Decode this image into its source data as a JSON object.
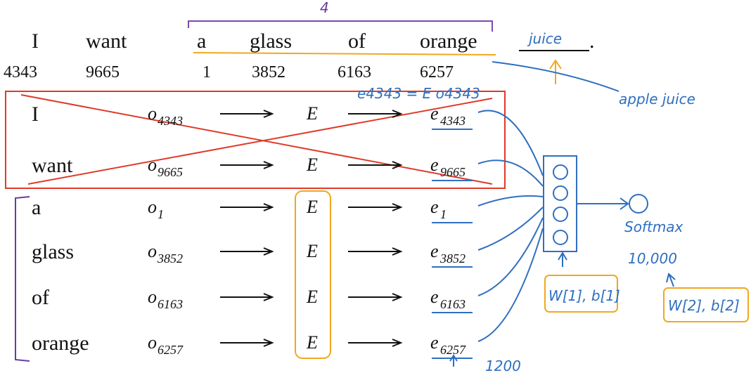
{
  "sentence": {
    "words": [
      "I",
      "want",
      "a",
      "glass",
      "of",
      "orange"
    ],
    "target": "juice",
    "end": ".",
    "indices": [
      "4343",
      "9665",
      "1",
      "3852",
      "6163",
      "6257"
    ]
  },
  "rows": [
    {
      "word": "I",
      "one_hot": "o",
      "one_hot_index": "4343",
      "matrix": "E",
      "embedding": "e",
      "embedding_index": "4343"
    },
    {
      "word": "want",
      "one_hot": "o",
      "one_hot_index": "9665",
      "matrix": "E",
      "embedding": "e",
      "embedding_index": "9665"
    },
    {
      "word": "a",
      "one_hot": "o",
      "one_hot_index": "1",
      "matrix": "E",
      "embedding": "e",
      "embedding_index": "1"
    },
    {
      "word": "glass",
      "one_hot": "o",
      "one_hot_index": "3852",
      "matrix": "E",
      "embedding": "e",
      "embedding_index": "3852"
    },
    {
      "word": "of",
      "one_hot": "o",
      "one_hot_index": "6163",
      "matrix": "E",
      "embedding": "e",
      "embedding_index": "6163"
    },
    {
      "word": "orange",
      "one_hot": "o",
      "one_hot_index": "6257",
      "matrix": "E",
      "embedding": "e",
      "embedding_index": "6257"
    }
  ],
  "annotations": {
    "context_size": "4",
    "alternative": "apple juice",
    "equation": "e4343 = E o4343",
    "softmax": "Softmax",
    "vocab_size": "10,000",
    "layer1_params": "W[1], b[1]",
    "layer2_params": "W[2], b[2]",
    "bottom_note": "1200"
  }
}
